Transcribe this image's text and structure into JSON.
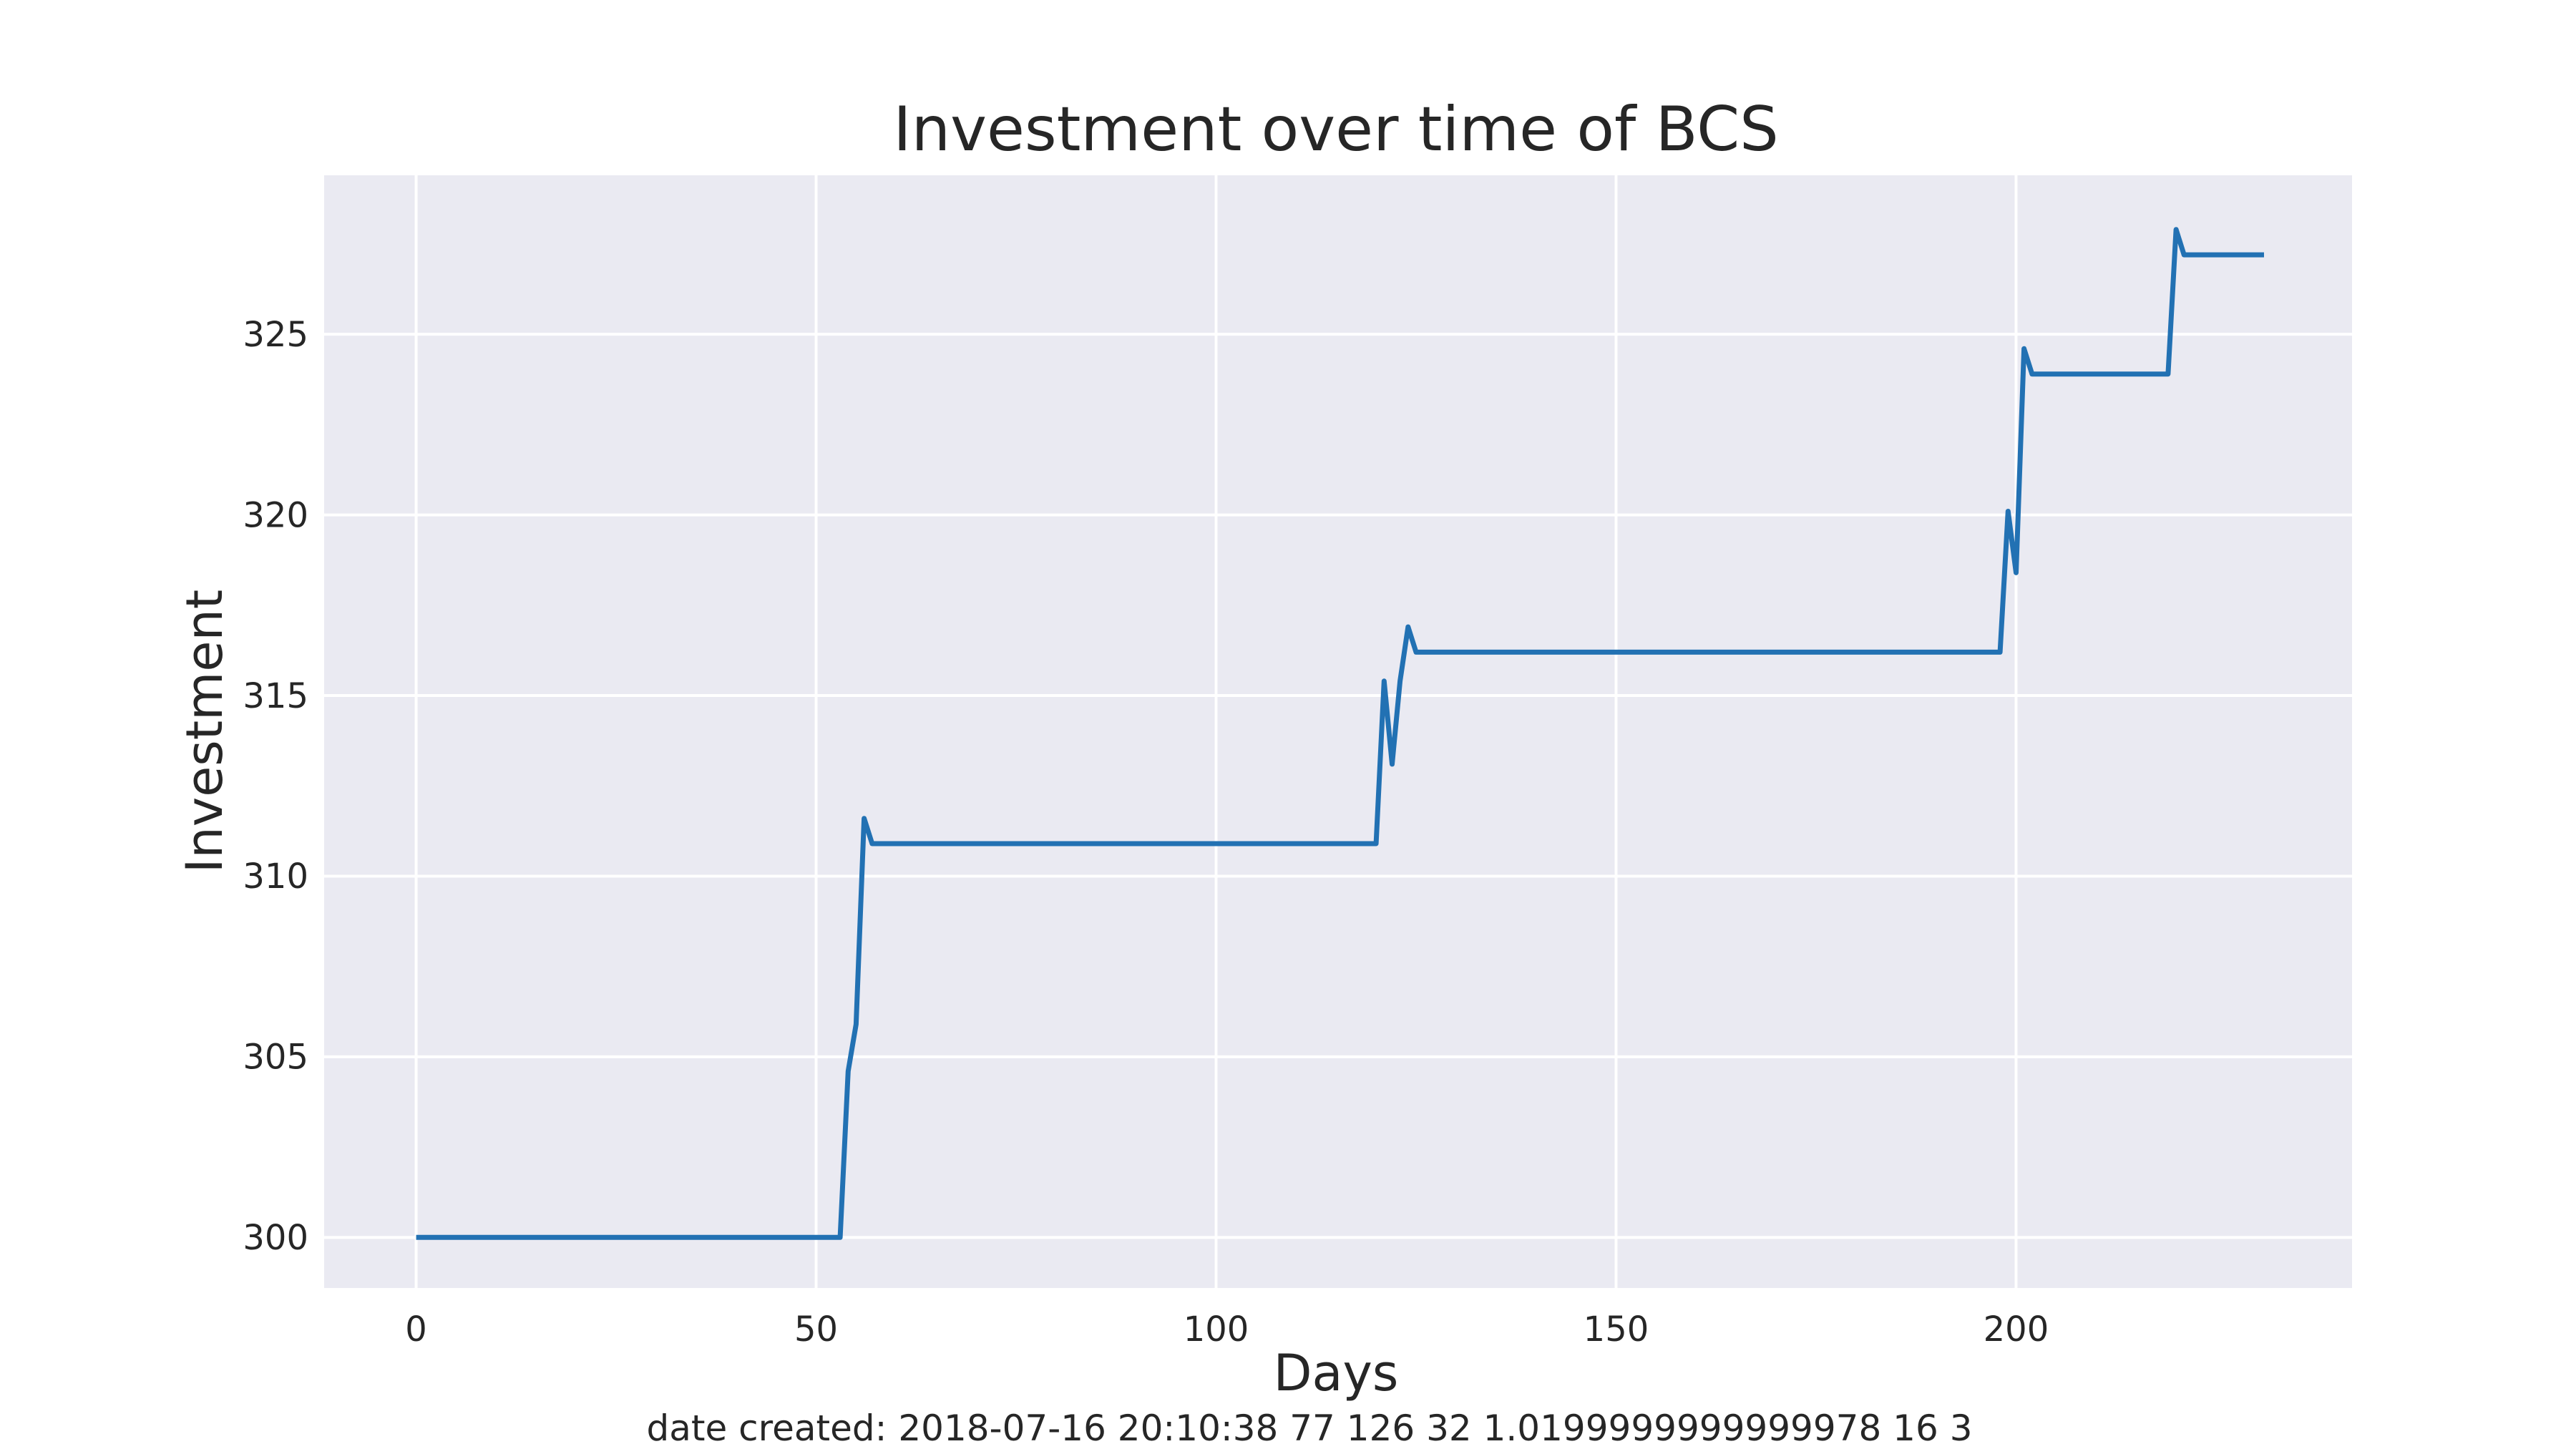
{
  "chart_data": {
    "type": "line",
    "title": "Investment over time of BCS",
    "xlabel": "Days",
    "ylabel": "Investment",
    "xlim": [
      -11.5,
      242
    ],
    "ylim": [
      298.6,
      329.4
    ],
    "xticks": [
      0,
      50,
      100,
      150,
      200
    ],
    "yticks": [
      300,
      305,
      310,
      315,
      320,
      325
    ],
    "grid": true,
    "legend": "none",
    "colors": {
      "background": "#eaeaf2",
      "grid": "#ffffff",
      "line": "#2271b3",
      "text": "#262626"
    },
    "series": [
      {
        "points": [
          [
            0,
            300.0
          ],
          [
            53,
            300.0
          ],
          [
            54,
            304.6
          ],
          [
            55,
            305.9
          ],
          [
            56,
            311.6
          ],
          [
            57,
            310.9
          ],
          [
            120,
            310.9
          ],
          [
            121,
            315.4
          ],
          [
            122,
            313.1
          ],
          [
            123,
            315.4
          ],
          [
            124,
            316.9
          ],
          [
            125,
            316.2
          ],
          [
            198,
            316.2
          ],
          [
            199,
            320.1
          ],
          [
            200,
            318.4
          ],
          [
            201,
            324.6
          ],
          [
            202,
            323.9
          ],
          [
            219,
            323.9
          ],
          [
            220,
            327.9
          ],
          [
            221,
            327.2
          ],
          [
            231,
            327.2
          ]
        ]
      }
    ]
  },
  "footer": {
    "note": "date created: 2018-07-16 20:10:38 77 126 32 1.0199999999999978 16 3"
  }
}
